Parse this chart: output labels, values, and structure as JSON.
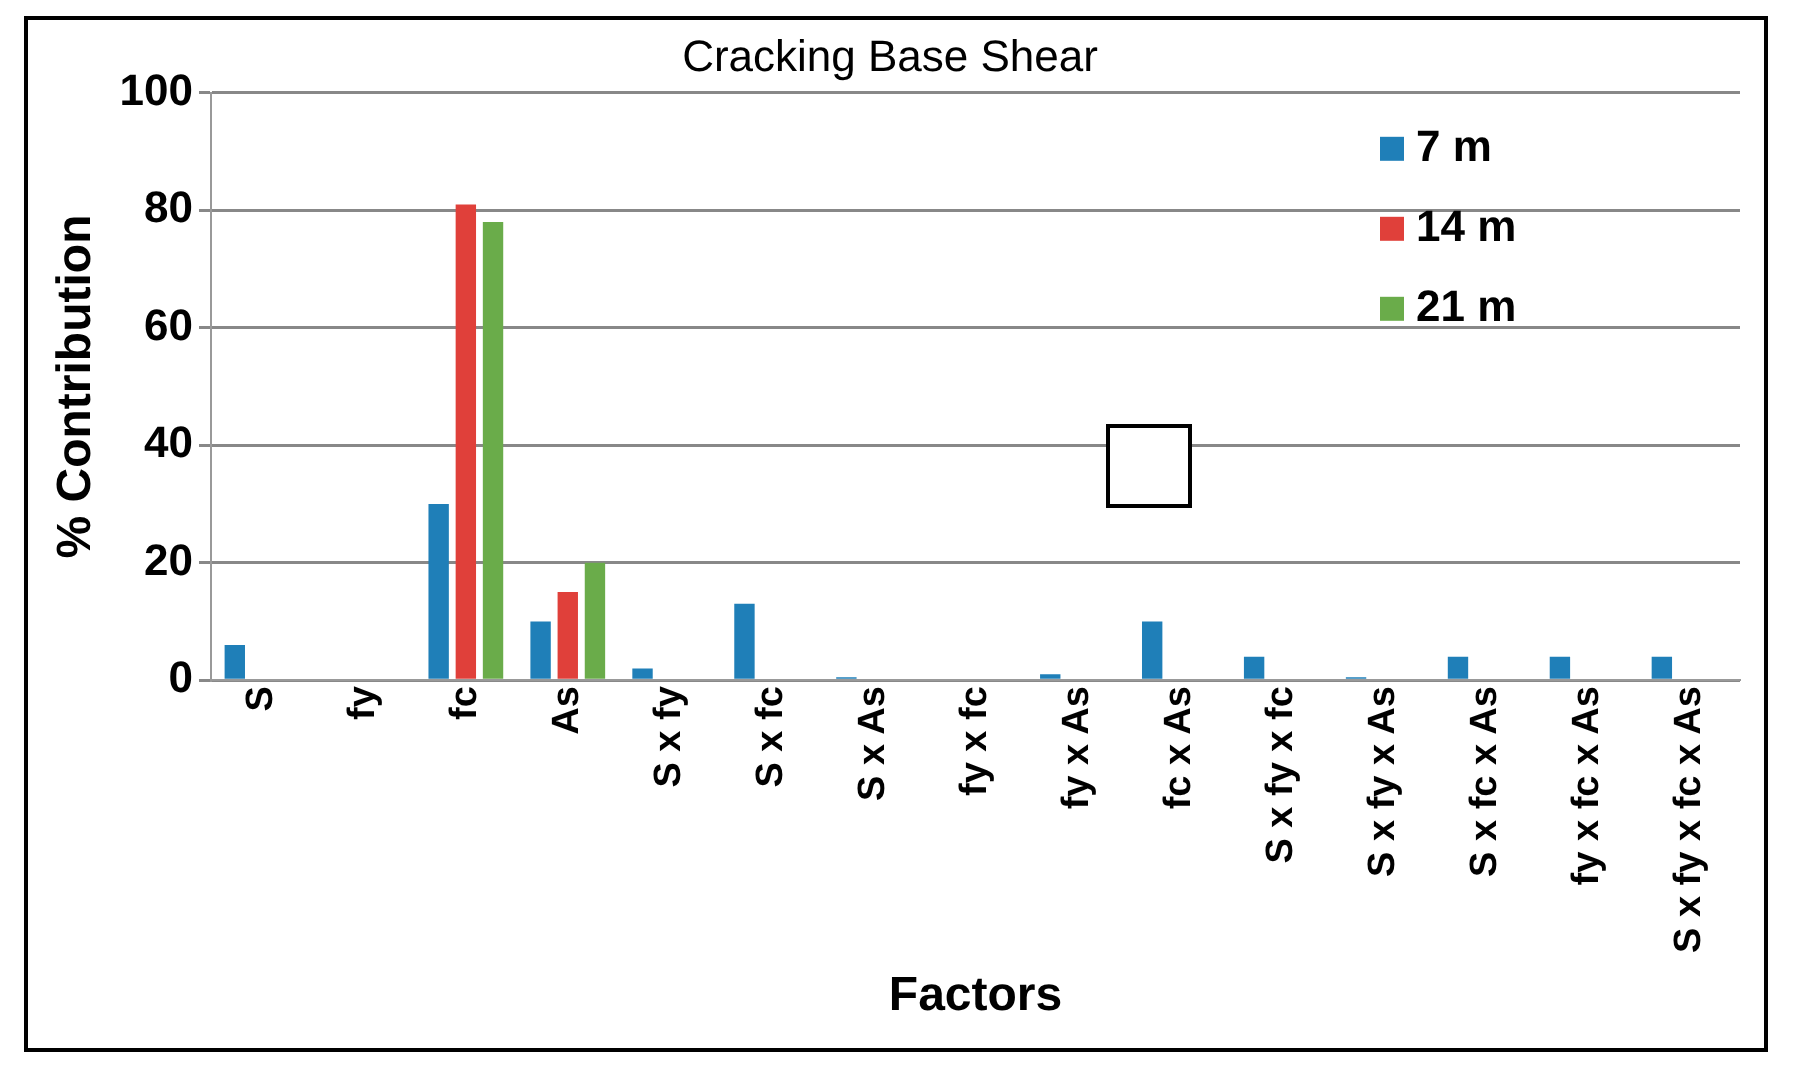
{
  "chart_data": {
    "type": "bar",
    "title": "Cracking Base Shear",
    "xlabel": "Factors",
    "ylabel": "% Contribution",
    "categories": [
      "S",
      "fy",
      "fc",
      "As",
      "S x fy",
      "S x fc",
      "S x As",
      "fy x fc",
      "fy x As",
      "fc x As",
      "S x fy x fc",
      "S x fy x As",
      "S x fc x As",
      "fy x fc x As",
      "S x fy x fc x As"
    ],
    "series": [
      {
        "name": "7 m",
        "color": "#1f7fb8",
        "values": [
          6,
          0,
          30,
          10,
          2,
          13,
          0.5,
          0,
          1,
          10,
          4,
          0.5,
          4,
          4,
          4
        ]
      },
      {
        "name": "14 m",
        "color": "#e0403a",
        "values": [
          0,
          0,
          81,
          15,
          0,
          0,
          0,
          0,
          0,
          0,
          0,
          0,
          0,
          0,
          0
        ]
      },
      {
        "name": "21 m",
        "color": "#6aac4a",
        "values": [
          0,
          0,
          78,
          20,
          0,
          0,
          0,
          0,
          0,
          0,
          0,
          0,
          0,
          0,
          0
        ]
      }
    ],
    "ylim": [
      0,
      100
    ],
    "yticks": [
      0,
      20,
      40,
      60,
      80,
      100
    ],
    "grid": "y",
    "legend": "top right"
  }
}
